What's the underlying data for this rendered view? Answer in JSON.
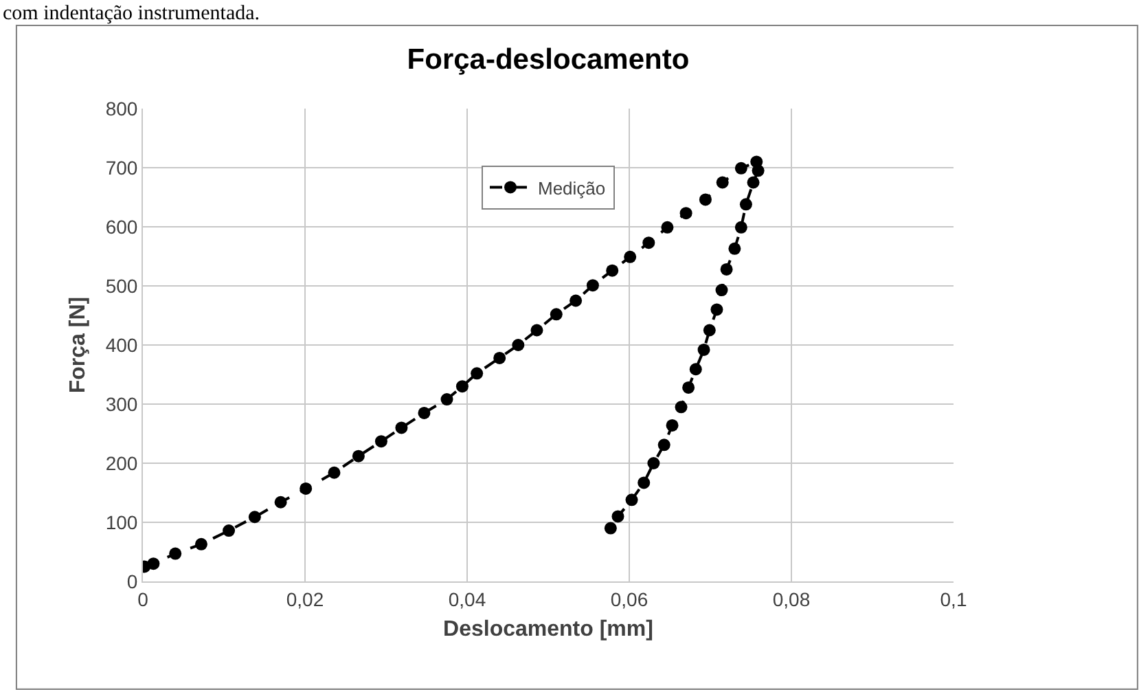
{
  "chart_data": {
    "type": "line",
    "title": "Força-deslocamento",
    "xlabel": "Deslocamento [mm]",
    "ylabel": "Força [N]",
    "annotations": [
      "com indentação instrumentada."
    ],
    "x": [
      0.0002,
      0.0013,
      0.004,
      0.0072,
      0.0106,
      0.0138,
      0.017,
      0.0201,
      0.0236,
      0.0266,
      0.0294,
      0.0319,
      0.0347,
      0.0375,
      0.0394,
      0.0412,
      0.044,
      0.0463,
      0.0486,
      0.051,
      0.0534,
      0.0555,
      0.0579,
      0.0601,
      0.0624,
      0.0647,
      0.067,
      0.0694,
      0.0715,
      0.0738,
      0.0757,
      0.0759,
      0.0753,
      0.0744,
      0.0738,
      0.073,
      0.072,
      0.0714,
      0.0708,
      0.0699,
      0.0692,
      0.0682,
      0.0673,
      0.0664,
      0.0653,
      0.0643,
      0.063,
      0.0618,
      0.0603,
      0.0586,
      0.0577
    ],
    "series": [
      {
        "name": "Medição",
        "color": "#000000",
        "values": [
          25,
          30,
          47,
          63,
          86,
          109,
          134,
          157,
          184,
          212,
          237,
          260,
          285,
          308,
          330,
          352,
          378,
          400,
          425,
          452,
          475,
          501,
          526,
          549,
          573,
          599,
          623,
          646,
          675,
          699,
          710,
          695,
          675,
          638,
          599,
          563,
          528,
          493,
          460,
          425,
          392,
          359,
          328,
          295,
          264,
          231,
          200,
          167,
          138,
          110,
          90
        ]
      }
    ],
    "xlim": [
      0,
      0.1
    ],
    "xticks": [
      {
        "value": 0,
        "label": "0"
      },
      {
        "value": 0.02,
        "label": "0,02"
      },
      {
        "value": 0.04,
        "label": "0,04"
      },
      {
        "value": 0.06,
        "label": "0,06"
      },
      {
        "value": 0.08,
        "label": "0,08"
      },
      {
        "value": 0.1,
        "label": "0,1"
      }
    ],
    "ylim": [
      0,
      800
    ],
    "yticks": [
      0,
      100,
      200,
      300,
      400,
      500,
      600,
      700,
      800
    ],
    "grid": true,
    "legend": "top",
    "marker": "circle",
    "line_style": "dashed"
  }
}
